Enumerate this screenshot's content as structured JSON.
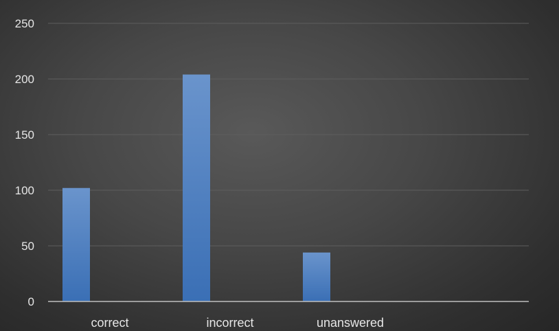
{
  "chart_data": {
    "type": "bar",
    "categories": [
      "correct",
      "incorrect",
      "unanswered",
      ""
    ],
    "values": [
      102,
      204,
      44,
      null
    ],
    "title": "",
    "xlabel": "",
    "ylabel": "",
    "ylim": [
      0,
      250
    ],
    "yticks": [
      0,
      50,
      100,
      150,
      200,
      250
    ],
    "grid": true,
    "legend": "none",
    "colors": {
      "bar_top": "#6a94cc",
      "bar_bottom": "#3a6fb5",
      "gridline": "#5e5e5e",
      "axis": "#bfbfbf",
      "text": "#e6e6e6"
    }
  }
}
